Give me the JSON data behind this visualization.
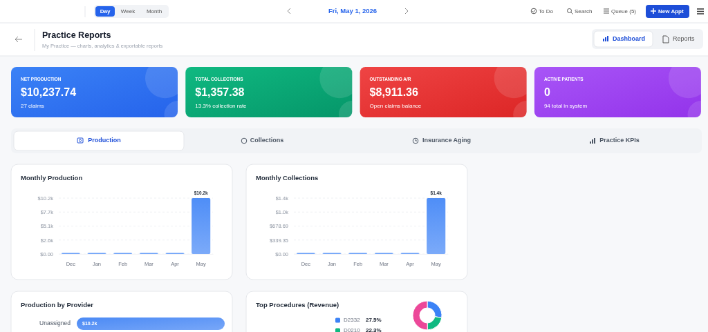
{
  "chart_data": [
    {
      "type": "other",
      "title": "Practice Reports",
      "subtitle": "My Practice — charts, analytics & exportable reports",
      "annotations": [
        "Day",
        "Week",
        "Month",
        "Fri, May 1, 2026",
        "To Do",
        "Search",
        "Queue (5)",
        "New Appt",
        "Dashboard",
        "Reports",
        "NET PRODUCTION",
        "$10,237.74",
        "27 claims",
        "TOTAL COLLECTIONS",
        "$1,357.38",
        "13.3% collection rate",
        "OUTSTANDING A/R",
        "$8,911.36",
        "Open claims balance",
        "ACTIVE PATIENTS",
        "0",
        "94 total in system",
        "Production",
        "Collections",
        "Insurance Aging",
        "Practice KPIs"
      ]
    },
    {
      "type": "bar",
      "title": "Monthly Production",
      "categories": [
        "Dec",
        "Jan",
        "Feb",
        "Mar",
        "Apr",
        "May"
      ],
      "values": [
        0,
        0,
        0,
        0,
        0,
        10237.74
      ],
      "value_labels": [
        null,
        null,
        null,
        null,
        null,
        "$10.2k"
      ],
      "color": "#4f8ef7",
      "ylim": [
        0,
        10237.74
      ],
      "yticks": [
        {
          "value": 0,
          "label": "$0.00"
        },
        {
          "value": 2559.44,
          "label": "$2.6k"
        },
        {
          "value": 5118.87,
          "label": "$5.1k"
        },
        {
          "value": 7678.31,
          "label": "$7.7k"
        },
        {
          "value": 10237.74,
          "label": "$10.2k"
        }
      ],
      "grid": "y"
    },
    {
      "type": "bar",
      "title": "Monthly Collections",
      "categories": [
        "Dec",
        "Jan",
        "Feb",
        "Mar",
        "Apr",
        "May"
      ],
      "values": [
        0,
        0,
        0,
        0,
        0,
        1357.38
      ],
      "value_labels": [
        null,
        null,
        null,
        null,
        null,
        "$1.4k"
      ],
      "color": "#4f8ef7",
      "ylim": [
        0,
        1357.38
      ],
      "yticks": [
        {
          "value": 0,
          "label": "$0.00"
        },
        {
          "value": 339.35,
          "label": "$339.35"
        },
        {
          "value": 678.69,
          "label": "$678.69"
        },
        {
          "value": 1018.04,
          "label": "$1.0k"
        },
        {
          "value": 1357.38,
          "label": "$1.4k"
        }
      ],
      "grid": "y"
    },
    {
      "type": "bar",
      "orientation": "horizontal",
      "title": "Production by Provider",
      "categories": [
        "Unassigned"
      ],
      "values": [
        10237.74
      ],
      "value_labels": [
        "$10.2k"
      ],
      "color": "#4b8af5"
    },
    {
      "type": "donut",
      "title": "Top Procedures (Revenue)",
      "categories": [
        "D2332",
        "D0210",
        null
      ],
      "values": [
        27.5,
        22.3,
        50.2
      ],
      "value_labels": [
        "27.5%",
        "22.3%",
        null
      ],
      "colors": [
        "#3b82f6",
        "#10b981",
        "#ec4899"
      ],
      "legend": "left"
    }
  ]
}
